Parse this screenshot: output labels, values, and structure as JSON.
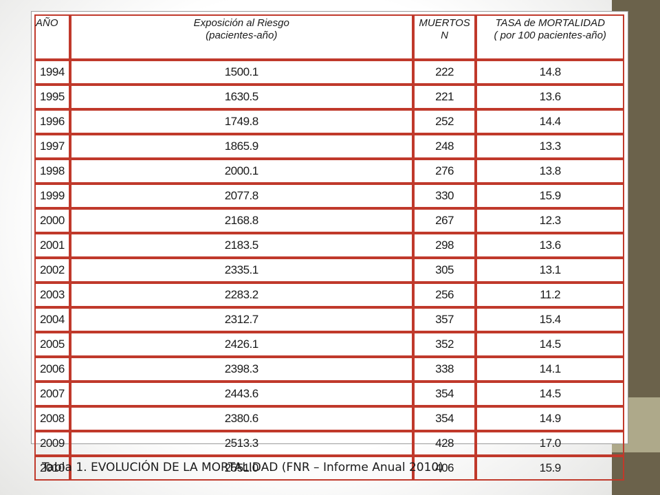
{
  "table": {
    "headers": {
      "year": "AÑO",
      "exposure_line1": "Exposición al Riesgo",
      "exposure_line2": "(pacientes-año)",
      "deaths_line1": "MUERTOS",
      "deaths_line2": "N",
      "rate_line1": "TASA de MORTALIDAD",
      "rate_line2": "( por 100 pacientes-año)"
    },
    "rows": [
      {
        "year": "1994",
        "exposure": "1500.1",
        "deaths": "222",
        "rate": "14.8"
      },
      {
        "year": "1995",
        "exposure": "1630.5",
        "deaths": "221",
        "rate": "13.6"
      },
      {
        "year": "1996",
        "exposure": "1749.8",
        "deaths": "252",
        "rate": "14.4"
      },
      {
        "year": "1997",
        "exposure": "1865.9",
        "deaths": "248",
        "rate": "13.3"
      },
      {
        "year": "1998",
        "exposure": "2000.1",
        "deaths": "276",
        "rate": "13.8"
      },
      {
        "year": "1999",
        "exposure": "2077.8",
        "deaths": "330",
        "rate": "15.9"
      },
      {
        "year": "2000",
        "exposure": "2168.8",
        "deaths": "267",
        "rate": "12.3"
      },
      {
        "year": "2001",
        "exposure": "2183.5",
        "deaths": "298",
        "rate": "13.6"
      },
      {
        "year": "2002",
        "exposure": "2335.1",
        "deaths": "305",
        "rate": "13.1"
      },
      {
        "year": "2003",
        "exposure": "2283.2",
        "deaths": "256",
        "rate": "11.2"
      },
      {
        "year": "2004",
        "exposure": "2312.7",
        "deaths": "357",
        "rate": "15.4"
      },
      {
        "year": "2005",
        "exposure": "2426.1",
        "deaths": "352",
        "rate": "14.5"
      },
      {
        "year": "2006",
        "exposure": "2398.3",
        "deaths": "338",
        "rate": "14.1"
      },
      {
        "year": "2007",
        "exposure": "2443.6",
        "deaths": "354",
        "rate": "14.5"
      },
      {
        "year": "2008",
        "exposure": "2380.6",
        "deaths": "354",
        "rate": "14.9"
      },
      {
        "year": "2009",
        "exposure": "2513.3",
        "deaths": "428",
        "rate": "17.0"
      },
      {
        "year": "2010",
        "exposure": "2551.0",
        "deaths": "406",
        "rate": "15.9"
      }
    ]
  },
  "caption": "Tabla 1. EVOLUCIÓN DE LA MORTALIDAD (FNR – Informe Anual 2010)",
  "colors": {
    "cell_border": "#c0392b",
    "side_bar": "#6b624b",
    "side_accent": "#aea98a"
  }
}
